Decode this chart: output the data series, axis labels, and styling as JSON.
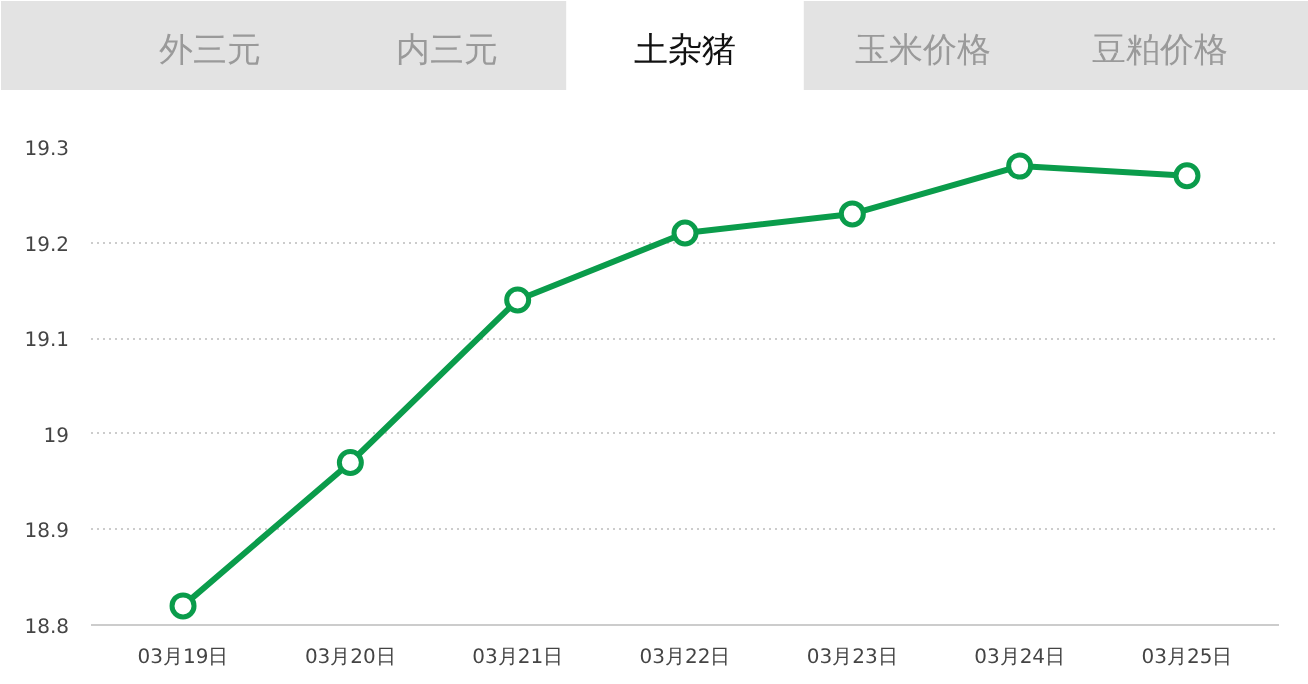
{
  "chart_data": {
    "type": "line",
    "title": "土杂猪",
    "annotations": [
      "外三元",
      "内三元",
      "玉米价格",
      "豆粕价格"
    ],
    "categories": [
      "03月19日",
      "03月20日",
      "03月21日",
      "03月22日",
      "03月23日",
      "03月24日",
      "03月25日"
    ],
    "series": [
      {
        "color": "#0a9c4b",
        "values": [
          18.82,
          18.97,
          19.14,
          19.21,
          19.23,
          19.28,
          19.27
        ]
      }
    ],
    "ylim": [
      18.8,
      19.3
    ],
    "yticks": [
      18.8,
      18.9,
      19,
      19.1,
      19.2,
      19.3
    ],
    "grid": "y",
    "marker": "circle",
    "line_style": "solid"
  }
}
